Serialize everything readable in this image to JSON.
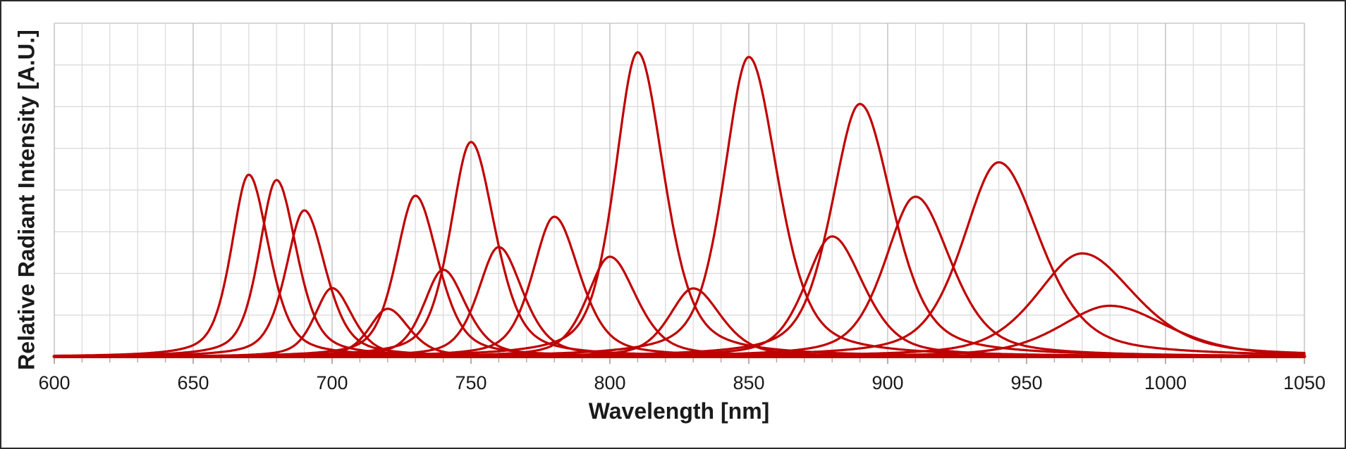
{
  "axes": {
    "x_label": "Wavelength [nm]",
    "y_label": "Relative Radiant Intensity [A.U.]",
    "x_min": 600,
    "x_max": 1050,
    "x_tick_step": 50,
    "x_minor_step": 10,
    "x_ticks": [
      600,
      650,
      700,
      750,
      800,
      850,
      900,
      950,
      1000,
      1050
    ],
    "y_min": 0,
    "y_max": 1,
    "y_divisions": 8,
    "y_tick_labels_visible": false
  },
  "style": {
    "curve_color": "#C00000",
    "grid_minor_color": "#D9D9D9",
    "grid_major_color": "#BFBFBF",
    "axis_line_color": "#BFBFBF",
    "tick_minor_color": "#A6A6A6",
    "tick_major_color": "#8C8C8C",
    "text_color": "#1A1A1A",
    "border_color": "#2B2B2B",
    "background": "#FFFFFF"
  },
  "chart_data": {
    "type": "line",
    "title": "",
    "xlabel": "Wavelength [nm]",
    "ylabel": "Relative Radiant Intensity [A.U.]",
    "xlim": [
      600,
      1050
    ],
    "ylim": [
      0,
      1
    ],
    "grid": "on",
    "legend_position": "none",
    "series_color": "#C00000",
    "curve_shape": "pseudo-voigt",
    "series": [
      {
        "peak_nm": 670,
        "relative_intensity": 0.546,
        "fwhm_nm": 16
      },
      {
        "peak_nm": 680,
        "relative_intensity": 0.53,
        "fwhm_nm": 16
      },
      {
        "peak_nm": 690,
        "relative_intensity": 0.439,
        "fwhm_nm": 17
      },
      {
        "peak_nm": 700,
        "relative_intensity": 0.206,
        "fwhm_nm": 16
      },
      {
        "peak_nm": 720,
        "relative_intensity": 0.144,
        "fwhm_nm": 17
      },
      {
        "peak_nm": 730,
        "relative_intensity": 0.483,
        "fwhm_nm": 18
      },
      {
        "peak_nm": 740,
        "relative_intensity": 0.261,
        "fwhm_nm": 18
      },
      {
        "peak_nm": 750,
        "relative_intensity": 0.644,
        "fwhm_nm": 19
      },
      {
        "peak_nm": 760,
        "relative_intensity": 0.329,
        "fwhm_nm": 19
      },
      {
        "peak_nm": 780,
        "relative_intensity": 0.42,
        "fwhm_nm": 20
      },
      {
        "peak_nm": 800,
        "relative_intensity": 0.3,
        "fwhm_nm": 21
      },
      {
        "peak_nm": 810,
        "relative_intensity": 0.913,
        "fwhm_nm": 21
      },
      {
        "peak_nm": 830,
        "relative_intensity": 0.205,
        "fwhm_nm": 22
      },
      {
        "peak_nm": 850,
        "relative_intensity": 0.899,
        "fwhm_nm": 23
      },
      {
        "peak_nm": 880,
        "relative_intensity": 0.361,
        "fwhm_nm": 25
      },
      {
        "peak_nm": 890,
        "relative_intensity": 0.758,
        "fwhm_nm": 26
      },
      {
        "peak_nm": 910,
        "relative_intensity": 0.48,
        "fwhm_nm": 28
      },
      {
        "peak_nm": 940,
        "relative_intensity": 0.583,
        "fwhm_nm": 33
      },
      {
        "peak_nm": 970,
        "relative_intensity": 0.31,
        "fwhm_nm": 42
      },
      {
        "peak_nm": 980,
        "relative_intensity": 0.153,
        "fwhm_nm": 46
      }
    ]
  }
}
